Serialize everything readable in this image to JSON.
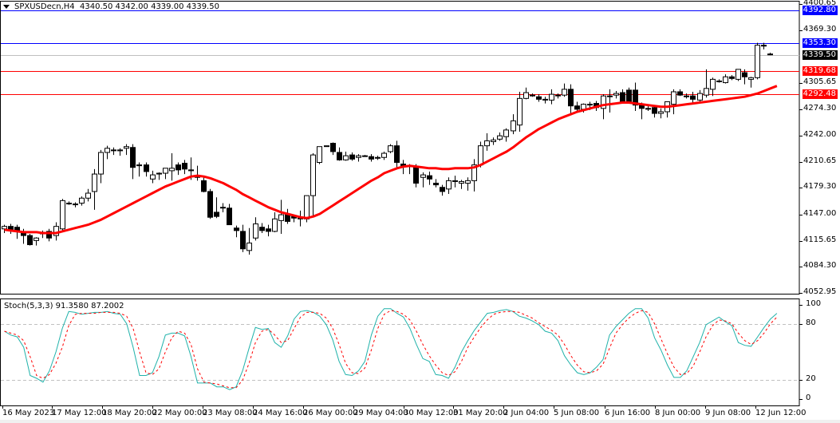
{
  "header": {
    "symbol": "SPXUSDecn,H4",
    "ohlc": "4340.50 4342.00 4339.00 4339.50"
  },
  "indicator": {
    "label": "Stoch(5,3,3) 91.3580 87.2002"
  },
  "colors": {
    "bull_body": "#ffffff",
    "bear_body": "#000000",
    "ma": "#ff0000",
    "stoch_main": "#20b2aa",
    "stoch_signal": "#ff0000",
    "blue_line": "#0000ff",
    "red_line": "#ff0000",
    "bid_line": "#c0c0c0",
    "level_grid": "#c0c0c0"
  },
  "price_axis": {
    "ticks": [
      "4400.65",
      "4369.30",
      "4305.65",
      "4274.30",
      "4242.00",
      "4210.65",
      "4179.30",
      "4147.00",
      "4115.65",
      "4084.30",
      "4052.95"
    ]
  },
  "price_tags": [
    {
      "label": "4392.80",
      "price": 4392.8,
      "bg": "#0000ff",
      "line": "#0000ff"
    },
    {
      "label": "4353.30",
      "price": 4353.3,
      "bg": "#0000ff",
      "line": "#0000ff"
    },
    {
      "label": "4339.50",
      "price": 4339.5,
      "bg": "#000000",
      "line": "#c0c0c0"
    },
    {
      "label": "4319.68",
      "price": 4319.68,
      "bg": "#ff0000",
      "line": "#ff0000"
    },
    {
      "label": "4292.48",
      "price": 4292.48,
      "bg": "#ff0000",
      "line": "#ff0000"
    }
  ],
  "indicator_axis": {
    "ticks": [
      "100",
      "80",
      "20",
      "0"
    ]
  },
  "time_axis": {
    "labels": [
      "16 May 2023",
      "17 May 12:00",
      "18 May 20:00",
      "22 May 00:00",
      "23 May 08:00",
      "24 May 16:00",
      "26 May 00:00",
      "29 May 04:00",
      "30 May 12:00",
      "31 May 20:00",
      "2 Jun 04:00",
      "5 Jun 08:00",
      "6 Jun 16:00",
      "8 Jun 00:00",
      "9 Jun 08:00",
      "12 Jun 12:00"
    ]
  },
  "chart_data": [
    {
      "type": "candlestick",
      "title": "SPXUSDecn,H4",
      "ylim": [
        4052.95,
        4400.65
      ],
      "yticks": [
        4400.65,
        4369.3,
        4305.65,
        4274.3,
        4242.0,
        4210.65,
        4179.3,
        4147.0,
        4115.65,
        4084.3,
        4052.95
      ],
      "horizontal_lines": [
        4392.8,
        4353.3,
        4339.5,
        4319.68,
        4292.48
      ],
      "last_ohlc": {
        "open": 4340.5,
        "high": 4342.0,
        "low": 4339.0,
        "close": 4339.5
      },
      "x_labels": [
        "16 May 2023",
        "17 May 12:00",
        "18 May 20:00",
        "22 May 00:00",
        "23 May 08:00",
        "24 May 16:00",
        "26 May 00:00",
        "29 May 04:00",
        "30 May 12:00",
        "31 May 20:00",
        "2 Jun 04:00",
        "5 Jun 08:00",
        "6 Jun 16:00",
        "8 Jun 00:00",
        "9 Jun 08:00",
        "12 Jun 12:00"
      ],
      "candles": [
        [
          4130,
          4135,
          4125,
          4133
        ],
        [
          4133,
          4136,
          4124,
          4128
        ],
        [
          4132,
          4135,
          4118,
          4127
        ],
        [
          4126,
          4130,
          4112,
          4122
        ],
        [
          4122,
          4124,
          4110,
          4111
        ],
        [
          4116,
          4120,
          4110,
          4119
        ],
        [
          4125,
          4128,
          4119,
          4124
        ],
        [
          4127,
          4130,
          4115,
          4119
        ],
        [
          4122,
          4138,
          4116,
          4133
        ],
        [
          4130,
          4166,
          4128,
          4164
        ],
        [
          4161,
          4163,
          4159,
          4160
        ],
        [
          4159,
          4162,
          4156,
          4160
        ],
        [
          4161,
          4169,
          4158,
          4167
        ],
        [
          4167,
          4178,
          4163,
          4173
        ],
        [
          4175,
          4202,
          4153,
          4196
        ],
        [
          4196,
          4225,
          4185,
          4222
        ],
        [
          4222,
          4230,
          4214,
          4227
        ],
        [
          4225,
          4228,
          4219,
          4225
        ],
        [
          4224,
          4227,
          4218,
          4225
        ],
        [
          4227,
          4232,
          4219,
          4229
        ],
        [
          4228,
          4232,
          4190,
          4204
        ],
        [
          4207,
          4210,
          4193,
          4206
        ],
        [
          4207,
          4210,
          4193,
          4199
        ],
        [
          4190,
          4200,
          4185,
          4195
        ],
        [
          4196,
          4198,
          4189,
          4197
        ],
        [
          4197,
          4203,
          4190,
          4203
        ],
        [
          4200,
          4221,
          4188,
          4203
        ],
        [
          4207,
          4210,
          4195,
          4201
        ],
        [
          4209,
          4213,
          4196,
          4202
        ],
        [
          4200,
          4216,
          4189,
          4201
        ],
        [
          4194,
          4206,
          4188,
          4192
        ],
        [
          4188,
          4193,
          4174,
          4175
        ],
        [
          4175,
          4178,
          4142,
          4144
        ],
        [
          4150,
          4168,
          4143,
          4145
        ],
        [
          4156,
          4161,
          4150,
          4156
        ],
        [
          4155,
          4160,
          4135,
          4135
        ],
        [
          4131,
          4134,
          4120,
          4128
        ],
        [
          4127,
          4135,
          4102,
          4106
        ],
        [
          4104,
          4131,
          4099,
          4113
        ],
        [
          4119,
          4144,
          4116,
          4136
        ],
        [
          4132,
          4137,
          4125,
          4128
        ],
        [
          4130,
          4135,
          4121,
          4127
        ],
        [
          4127,
          4150,
          4126,
          4142
        ],
        [
          4140,
          4165,
          4124,
          4147
        ],
        [
          4148,
          4154,
          4136,
          4139
        ],
        [
          4145,
          4147,
          4138,
          4143
        ],
        [
          4142,
          4152,
          4133,
          4143
        ],
        [
          4142,
          4170,
          4138,
          4170
        ],
        [
          4170,
          4221,
          4144,
          4219
        ],
        [
          4210,
          4225,
          4208,
          4229
        ],
        [
          4230,
          4230,
          4229,
          4230
        ],
        [
          4233,
          4234,
          4219,
          4223
        ],
        [
          4222,
          4228,
          4212,
          4213
        ],
        [
          4213,
          4223,
          4212,
          4218
        ],
        [
          4219,
          4222,
          4212,
          4214
        ],
        [
          4216,
          4220,
          4211,
          4218
        ],
        [
          4218,
          4219,
          4217,
          4218
        ],
        [
          4217,
          4220,
          4211,
          4214
        ],
        [
          4216,
          4218,
          4213,
          4215
        ],
        [
          4216,
          4223,
          4213,
          4221
        ],
        [
          4223,
          4232,
          4221,
          4230
        ],
        [
          4230,
          4236,
          4203,
          4210
        ],
        [
          4208,
          4213,
          4196,
          4205
        ],
        [
          4205,
          4208,
          4196,
          4206
        ],
        [
          4204,
          4208,
          4180,
          4185
        ],
        [
          4192,
          4198,
          4180,
          4195
        ],
        [
          4194,
          4199,
          4183,
          4190
        ],
        [
          4185,
          4190,
          4180,
          4183
        ],
        [
          4180,
          4183,
          4170,
          4175
        ],
        [
          4178,
          4192,
          4172,
          4188
        ],
        [
          4187,
          4194,
          4180,
          4188
        ],
        [
          4185,
          4189,
          4178,
          4187
        ],
        [
          4185,
          4192,
          4176,
          4188
        ],
        [
          4188,
          4214,
          4175,
          4207
        ],
        [
          4207,
          4235,
          4204,
          4230
        ],
        [
          4230,
          4245,
          4224,
          4236
        ],
        [
          4235,
          4240,
          4231,
          4237
        ],
        [
          4238,
          4246,
          4236,
          4242
        ],
        [
          4241,
          4251,
          4235,
          4249
        ],
        [
          4248,
          4268,
          4244,
          4260
        ],
        [
          4255,
          4295,
          4247,
          4287
        ],
        [
          4287,
          4300,
          4286,
          4294
        ],
        [
          4290,
          4293,
          4289,
          4291
        ],
        [
          4289,
          4292,
          4283,
          4286
        ],
        [
          4285,
          4289,
          4281,
          4286
        ],
        [
          4285,
          4298,
          4280,
          4292
        ],
        [
          4291,
          4293,
          4287,
          4291
        ],
        [
          4291,
          4305,
          4289,
          4298
        ],
        [
          4298,
          4304,
          4267,
          4278
        ],
        [
          4278,
          4283,
          4272,
          4274
        ],
        [
          4274,
          4281,
          4270,
          4280
        ],
        [
          4280,
          4283,
          4273,
          4280
        ],
        [
          4281,
          4284,
          4272,
          4276
        ],
        [
          4275,
          4292,
          4262,
          4290
        ],
        [
          4290,
          4298,
          4270,
          4290
        ],
        [
          4291,
          4296,
          4287,
          4293
        ],
        [
          4294,
          4298,
          4284,
          4282
        ],
        [
          4297,
          4300,
          4282,
          4282
        ],
        [
          4297,
          4306,
          4272,
          4279
        ],
        [
          4279,
          4282,
          4262,
          4275
        ],
        [
          4275,
          4278,
          4272,
          4275
        ],
        [
          4276,
          4277,
          4264,
          4269
        ],
        [
          4269,
          4275,
          4263,
          4271
        ],
        [
          4271,
          4280,
          4264,
          4283
        ],
        [
          4280,
          4298,
          4268,
          4295
        ],
        [
          4295,
          4298,
          4290,
          4291
        ],
        [
          4290,
          4293,
          4287,
          4289
        ],
        [
          4290,
          4295,
          4280,
          4286
        ],
        [
          4285,
          4297,
          4283,
          4293
        ],
        [
          4291,
          4322,
          4288,
          4299
        ],
        [
          4298,
          4312,
          4290,
          4310
        ],
        [
          4308,
          4310,
          4306,
          4308
        ],
        [
          4306,
          4316,
          4305,
          4313
        ],
        [
          4313,
          4315,
          4309,
          4311
        ],
        [
          4310,
          4321,
          4308,
          4322
        ],
        [
          4318,
          4322,
          4304,
          4313
        ],
        [
          4310,
          4313,
          4300,
          4312
        ],
        [
          4312,
          4354,
          4310,
          4351
        ],
        [
          4351,
          4354,
          4346,
          4350
        ],
        [
          4340.5,
          4342,
          4339,
          4339.5
        ]
      ],
      "ma_series": [
        4129,
        4128,
        4127,
        4126,
        4126,
        4126,
        4125,
        4125,
        4125,
        4127,
        4129,
        4131,
        4133,
        4135,
        4138,
        4141,
        4145,
        4149,
        4153,
        4157,
        4161,
        4165,
        4169,
        4173,
        4177,
        4181,
        4184,
        4187,
        4190,
        4193,
        4194,
        4193,
        4191,
        4188,
        4185,
        4181,
        4177,
        4172,
        4168,
        4164,
        4160,
        4156,
        4153,
        4150,
        4148,
        4146,
        4144,
        4143,
        4145,
        4148,
        4153,
        4158,
        4163,
        4168,
        4173,
        4178,
        4183,
        4188,
        4192,
        4197,
        4200,
        4203,
        4205,
        4206,
        4205,
        4204,
        4203,
        4203,
        4202,
        4202,
        4203,
        4203,
        4203,
        4204,
        4207,
        4211,
        4215,
        4219,
        4223,
        4228,
        4234,
        4240,
        4245,
        4250,
        4254,
        4258,
        4262,
        4265,
        4268,
        4271,
        4273,
        4275,
        4277,
        4279,
        4280,
        4281,
        4282,
        4282,
        4281,
        4280,
        4279,
        4278,
        4277,
        4277,
        4278,
        4279,
        4280,
        4281,
        4282,
        4283,
        4284,
        4285,
        4286,
        4287,
        4288,
        4289,
        4291,
        4293,
        4296,
        4299,
        4302
      ]
    },
    {
      "type": "line",
      "title": "Stoch(5,3,3) 91.3580 87.2002",
      "ylim": [
        0,
        100
      ],
      "levels": [
        80,
        20
      ],
      "yticks": [
        100,
        80,
        20,
        0
      ],
      "series": [
        {
          "name": "Main %K",
          "color": "#20b2aa",
          "values": [
            72,
            68,
            66,
            55,
            25,
            22,
            18,
            30,
            50,
            75,
            93,
            92,
            90,
            91,
            92,
            92,
            93,
            91,
            90,
            80,
            55,
            25,
            25,
            28,
            45,
            68,
            70,
            70,
            67,
            45,
            17,
            17,
            17,
            13,
            13,
            10,
            13,
            30,
            54,
            76,
            74,
            75,
            60,
            55,
            67,
            85,
            93,
            94,
            92,
            88,
            79,
            63,
            40,
            26,
            25,
            30,
            40,
            68,
            88,
            96,
            96,
            91,
            87,
            75,
            58,
            43,
            40,
            26,
            25,
            22,
            34,
            50,
            62,
            73,
            82,
            91,
            92,
            94,
            95,
            93,
            88,
            86,
            83,
            79,
            72,
            70,
            62,
            46,
            36,
            28,
            26,
            28,
            34,
            42,
            68,
            77,
            84,
            91,
            96,
            96,
            86,
            65,
            52,
            36,
            23,
            23,
            30,
            45,
            60,
            79,
            83,
            87,
            82,
            78,
            60,
            57,
            56,
            66,
            76,
            85,
            91
          ]
        },
        {
          "name": "Signal %D",
          "color": "#ff0000",
          "values": [
            72,
            70,
            68,
            62,
            45,
            25,
            22,
            26,
            38,
            55,
            78,
            90,
            91,
            91,
            91,
            92,
            92,
            92,
            91,
            88,
            75,
            50,
            28,
            26,
            32,
            50,
            65,
            72,
            70,
            58,
            32,
            18,
            17,
            16,
            14,
            12,
            12,
            20,
            38,
            60,
            72,
            74,
            68,
            60,
            62,
            75,
            87,
            92,
            92,
            91,
            86,
            75,
            58,
            38,
            28,
            27,
            33,
            52,
            75,
            90,
            94,
            93,
            90,
            84,
            72,
            58,
            46,
            36,
            28,
            25,
            29,
            40,
            55,
            66,
            76,
            84,
            90,
            92,
            93,
            93,
            92,
            89,
            86,
            81,
            77,
            73,
            68,
            58,
            46,
            36,
            29,
            28,
            30,
            37,
            54,
            70,
            79,
            86,
            91,
            94,
            92,
            80,
            64,
            48,
            34,
            26,
            27,
            35,
            50,
            66,
            78,
            84,
            83,
            80,
            70,
            62,
            58,
            62,
            70,
            80,
            87
          ]
        }
      ],
      "last_values": {
        "main": 91.358,
        "signal": 87.2002
      }
    }
  ]
}
